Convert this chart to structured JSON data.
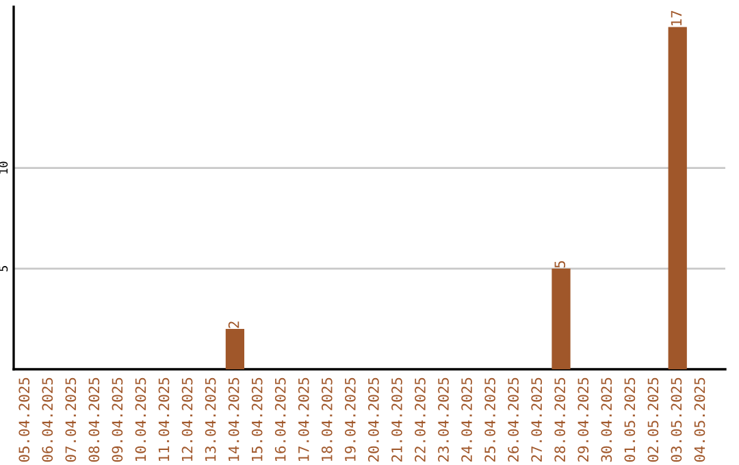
{
  "chart_data": {
    "type": "bar",
    "categories": [
      "05.04.2025",
      "06.04.2025",
      "07.04.2025",
      "08.04.2025",
      "09.04.2025",
      "10.04.2025",
      "11.04.2025",
      "12.04.2025",
      "13.04.2025",
      "14.04.2025",
      "15.04.2025",
      "16.04.2025",
      "17.04.2025",
      "18.04.2025",
      "19.04.2025",
      "20.04.2025",
      "21.04.2025",
      "22.04.2025",
      "23.04.2025",
      "24.04.2025",
      "25.04.2025",
      "26.04.2025",
      "27.04.2025",
      "28.04.2025",
      "29.04.2025",
      "30.04.2025",
      "01.05.2025",
      "02.05.2025",
      "03.05.2025",
      "04.05.2025"
    ],
    "values": [
      0,
      0,
      0,
      0,
      0,
      0,
      0,
      0,
      0,
      2,
      0,
      0,
      0,
      0,
      0,
      0,
      0,
      0,
      0,
      0,
      0,
      0,
      0,
      5,
      0,
      0,
      0,
      0,
      17,
      0
    ],
    "value_labels": [
      null,
      null,
      null,
      null,
      null,
      null,
      null,
      null,
      null,
      "2",
      null,
      null,
      null,
      null,
      null,
      null,
      null,
      null,
      null,
      null,
      null,
      null,
      null,
      "5",
      null,
      null,
      null,
      null,
      "17",
      null
    ],
    "color": "#a0572a",
    "ylim": [
      0,
      18
    ],
    "yticks": [
      5,
      10
    ],
    "grid": "y"
  }
}
